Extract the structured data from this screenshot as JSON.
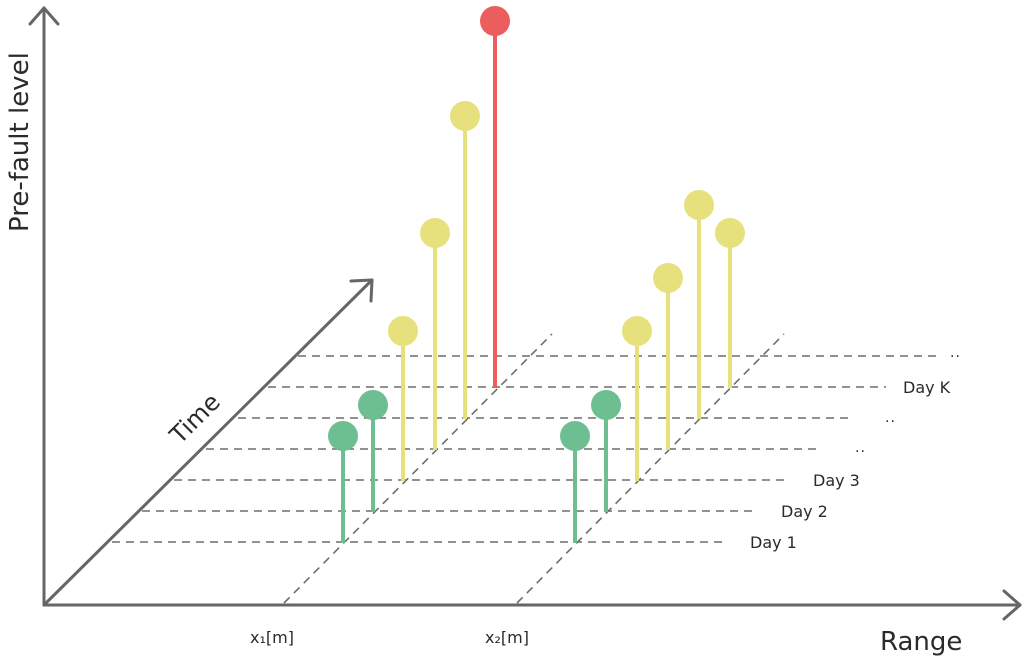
{
  "diagram": {
    "y_axis_title": "Pre-fault level",
    "x_axis_title": "Range",
    "time_axis_title": "Time",
    "x_ticks": [
      "x₁[m]",
      "x₂[m]"
    ],
    "day_labels": [
      "Day K",
      "Day 3",
      "Day 2",
      "Day 1"
    ],
    "ellipsis": ".."
  },
  "colors": {
    "axis": "#666666",
    "grid_dash": "#6d6d6d",
    "level_green": "#6dbf91",
    "level_yellow": "#e6e17c",
    "level_red": "#ec5d5d"
  }
}
